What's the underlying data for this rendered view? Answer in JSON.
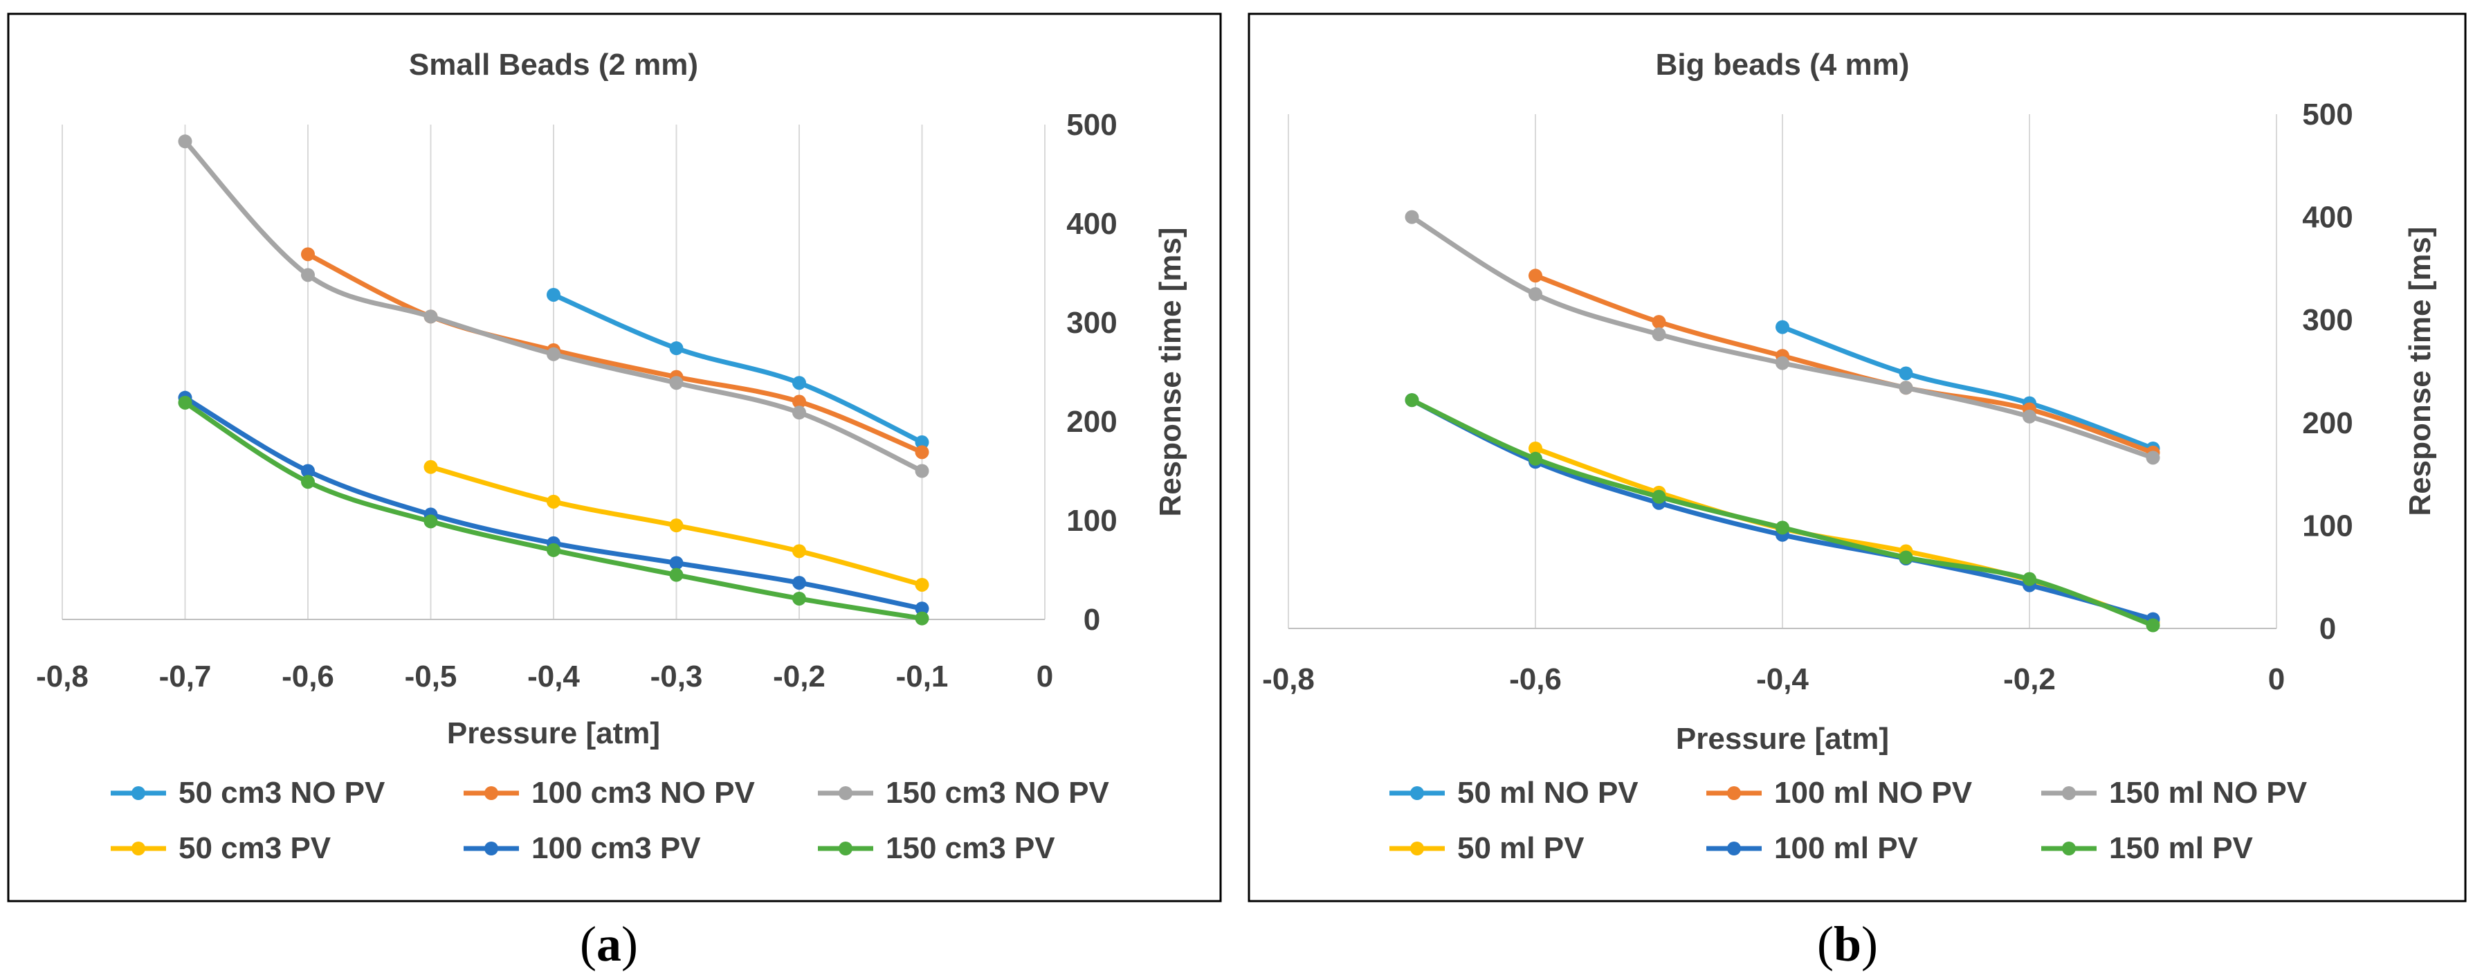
{
  "chart_data": [
    {
      "type": "line",
      "title": "Small Beads (2 mm)",
      "xlabel": "Pressure [atm]",
      "ylabel": "Response time [ms]",
      "xlim": [
        -0.8,
        0
      ],
      "ylim": [
        0,
        500
      ],
      "x_ticks": [
        "-0,8",
        "-0,7",
        "-0,6",
        "-0,5",
        "-0,4",
        "-0,3",
        "-0,2",
        "-0,1",
        "0"
      ],
      "y_ticks": [
        "0",
        "100",
        "200",
        "300",
        "400",
        "500"
      ],
      "y_axis_side": "right",
      "grid": "vertical",
      "legend_position": "bottom",
      "caption": {
        "open": "(",
        "letter": "a",
        "close": ")"
      },
      "series": [
        {
          "name": "50 cm3 NO PV",
          "color": "#2E9BD6",
          "x": [
            -0.4,
            -0.3,
            -0.2,
            -0.1
          ],
          "y": [
            328,
            274,
            239,
            179
          ]
        },
        {
          "name": "100 cm3 NO PV",
          "color": "#ED7D31",
          "x": [
            -0.6,
            -0.5,
            -0.4,
            -0.3,
            -0.2,
            -0.1
          ],
          "y": [
            369,
            306,
            272,
            245,
            220,
            169
          ]
        },
        {
          "name": "150 cm3 NO PV",
          "color": "#A5A5A5",
          "x": [
            -0.7,
            -0.6,
            -0.5,
            -0.4,
            -0.3,
            -0.2,
            -0.1
          ],
          "y": [
            483,
            348,
            306,
            268,
            239,
            209,
            150
          ]
        },
        {
          "name": "50 cm3 PV",
          "color": "#FFC000",
          "x": [
            -0.5,
            -0.4,
            -0.3,
            -0.2,
            -0.1
          ],
          "y": [
            154,
            119,
            95,
            69,
            35
          ]
        },
        {
          "name": "100 cm3 PV",
          "color": "#2672C4",
          "x": [
            -0.7,
            -0.6,
            -0.5,
            -0.4,
            -0.3,
            -0.2,
            -0.1
          ],
          "y": [
            224,
            150,
            106,
            77,
            57,
            37,
            11
          ]
        },
        {
          "name": "150 cm3 PV",
          "color": "#4EAC3F",
          "x": [
            -0.7,
            -0.6,
            -0.5,
            -0.4,
            -0.3,
            -0.2,
            -0.1
          ],
          "y": [
            219,
            139,
            99,
            70,
            45,
            21,
            1
          ]
        }
      ]
    },
    {
      "type": "line",
      "title": "Big beads (4 mm)",
      "xlabel": "Pressure [atm]",
      "ylabel": "Response time [ms]",
      "xlim": [
        -0.8,
        0
      ],
      "ylim": [
        0,
        500
      ],
      "x_ticks": [
        "-0,8",
        "-0,6",
        "-0,4",
        "-0,2",
        "0"
      ],
      "y_ticks": [
        "0",
        "100",
        "200",
        "300",
        "400",
        "500"
      ],
      "y_axis_side": "right",
      "grid": "vertical",
      "legend_position": "bottom",
      "caption": {
        "open": "(",
        "letter": "b",
        "close": ")"
      },
      "series": [
        {
          "name": "50 ml NO PV",
          "color": "#2E9BD6",
          "x": [
            -0.4,
            -0.3,
            -0.2,
            -0.1
          ],
          "y": [
            293,
            248,
            219,
            175
          ]
        },
        {
          "name": "100 ml NO PV",
          "color": "#ED7D31",
          "x": [
            -0.6,
            -0.5,
            -0.4,
            -0.3,
            -0.2,
            -0.1
          ],
          "y": [
            343,
            298,
            265,
            234,
            213,
            171
          ]
        },
        {
          "name": "150 ml NO PV",
          "color": "#A5A5A5",
          "x": [
            -0.7,
            -0.6,
            -0.5,
            -0.4,
            -0.3,
            -0.2,
            -0.1
          ],
          "y": [
            400,
            325,
            286,
            258,
            234,
            206,
            166
          ]
        },
        {
          "name": "50 ml PV",
          "color": "#FFC000",
          "x": [
            -0.6,
            -0.5,
            -0.4,
            -0.3,
            -0.2,
            -0.1
          ],
          "y": [
            175,
            132,
            97,
            75,
            47,
            6
          ]
        },
        {
          "name": "100 ml PV",
          "color": "#2672C4",
          "x": [
            -0.7,
            -0.6,
            -0.5,
            -0.4,
            -0.3,
            -0.2,
            -0.1
          ],
          "y": [
            222,
            162,
            122,
            91,
            68,
            42,
            9
          ]
        },
        {
          "name": "150 ml PV",
          "color": "#4EAC3F",
          "x": [
            -0.7,
            -0.6,
            -0.5,
            -0.4,
            -0.3,
            -0.2,
            -0.1
          ],
          "y": [
            222,
            165,
            128,
            98,
            69,
            48,
            3
          ]
        }
      ]
    }
  ]
}
